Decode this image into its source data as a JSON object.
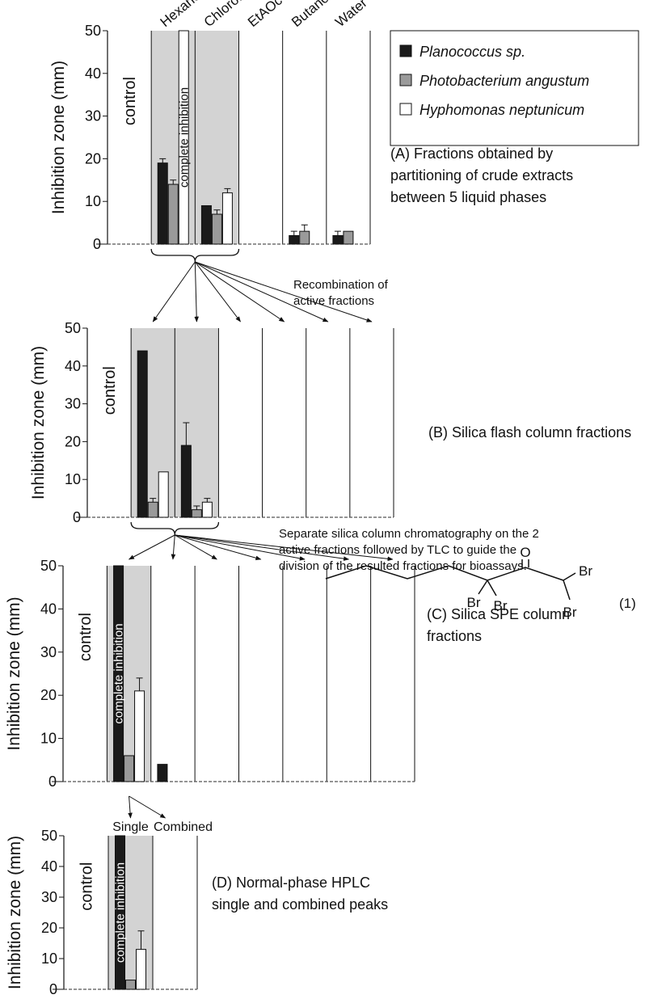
{
  "chart_data": [
    {
      "type": "bar",
      "ylabel": "Inhibition zone (mm)",
      "categories": [
        "control",
        "Hexane",
        "Chloroform",
        "EtAOc",
        "Butanol",
        "Water"
      ],
      "highlighted_columns": [
        1,
        2
      ],
      "series": [
        {
          "name": "Planococcus sp.",
          "color": "#1a1a1a",
          "values": [
            null,
            19,
            9,
            null,
            2,
            2
          ],
          "errors": [
            null,
            1,
            null,
            null,
            1,
            1
          ]
        },
        {
          "name": "Photobacterium angustum",
          "color": "#9a9a9a",
          "values": [
            null,
            14,
            7,
            null,
            3,
            3
          ],
          "errors": [
            null,
            1,
            1,
            null,
            1.5,
            null
          ]
        },
        {
          "name": "Hyphomonas neptunicum",
          "color": "#ffffff",
          "values": [
            null,
            50,
            12,
            null,
            null,
            null
          ],
          "errors": [
            null,
            null,
            1,
            null,
            null,
            null
          ]
        }
      ],
      "ylim": [
        0,
        50
      ],
      "yticks": [
        0,
        10,
        20,
        30,
        40,
        50
      ],
      "legend": "top-right",
      "bar_label": {
        "text": "complete inhibition",
        "series": 2,
        "category": 1
      },
      "description": [
        "(A) Fractions obtained by",
        "partitioning of crude extracts",
        "between 5 liquid phases"
      ]
    },
    {
      "type": "bar",
      "ylabel": "Inhibition zone (mm)",
      "categories": [
        "control",
        null,
        null,
        null,
        null,
        null,
        null
      ],
      "highlighted_columns": [
        1,
        2
      ],
      "series": [
        {
          "color": "#1a1a1a",
          "values": [
            null,
            44,
            19,
            null,
            null,
            null,
            null
          ],
          "errors": [
            null,
            null,
            6,
            null,
            null,
            null,
            null
          ]
        },
        {
          "color": "#9a9a9a",
          "values": [
            null,
            4,
            2,
            null,
            null,
            null,
            null
          ],
          "errors": [
            null,
            1,
            1,
            null,
            null,
            null,
            null
          ]
        },
        {
          "color": "#ffffff",
          "values": [
            null,
            12,
            4,
            null,
            null,
            null,
            null
          ],
          "errors": [
            null,
            null,
            1,
            null,
            null,
            null,
            null
          ]
        }
      ],
      "ylim": [
        0,
        50
      ],
      "yticks": [
        0,
        10,
        20,
        30,
        40,
        50
      ],
      "note": [
        "Recombination of",
        "active fractions"
      ],
      "description": [
        "(B) Silica flash column fractions"
      ]
    },
    {
      "type": "bar",
      "ylabel": "Inhibition zone (mm)",
      "categories": [
        "control",
        null,
        null,
        null,
        null,
        null,
        null,
        null
      ],
      "highlighted_columns": [
        1
      ],
      "series": [
        {
          "color": "#1a1a1a",
          "values": [
            null,
            50,
            4,
            null,
            null,
            null,
            null,
            null
          ],
          "errors": [
            null,
            null,
            null,
            null,
            null,
            null,
            null,
            null
          ]
        },
        {
          "color": "#9a9a9a",
          "values": [
            null,
            6,
            null,
            null,
            null,
            null,
            null,
            null
          ],
          "errors": [
            null,
            null,
            null,
            null,
            null,
            null,
            null,
            null
          ]
        },
        {
          "color": "#ffffff",
          "values": [
            null,
            21,
            null,
            null,
            null,
            null,
            null,
            null
          ],
          "errors": [
            null,
            3,
            null,
            null,
            null,
            null,
            null,
            null
          ]
        }
      ],
      "ylim": [
        0,
        50
      ],
      "yticks": [
        0,
        10,
        20,
        30,
        40,
        50
      ],
      "bar_label": {
        "text": "complete inhibition",
        "series": 0,
        "category": 1
      },
      "note": [
        "Separate silica column chromatography on the 2",
        "active fractions followed by TLC  to guide the",
        "division of the resulted fractions for  bioassays."
      ],
      "description": [
        "(C) Silica SPE column",
        "fractions"
      ]
    },
    {
      "type": "bar",
      "ylabel": "Inhibition zone (mm)",
      "categories": [
        "control",
        "Single",
        "Combined"
      ],
      "highlighted_columns": [
        1
      ],
      "series": [
        {
          "color": "#1a1a1a",
          "values": [
            null,
            50,
            null
          ],
          "errors": [
            null,
            null,
            null
          ]
        },
        {
          "color": "#9a9a9a",
          "values": [
            null,
            3,
            null
          ],
          "errors": [
            null,
            null,
            null
          ]
        },
        {
          "color": "#ffffff",
          "values": [
            null,
            13,
            null
          ],
          "errors": [
            null,
            6,
            null
          ]
        }
      ],
      "ylim": [
        0,
        50
      ],
      "yticks": [
        0,
        10,
        20,
        30,
        40,
        50
      ],
      "bar_label": {
        "text": "complete inhibition",
        "series": 0,
        "category": 1
      },
      "description": [
        "(D) Normal-phase HPLC",
        "single and combined peaks"
      ]
    }
  ],
  "structure": {
    "atom_labels": [
      "O",
      "Br",
      "Br",
      "Br",
      "Br"
    ],
    "number": "(1)"
  }
}
